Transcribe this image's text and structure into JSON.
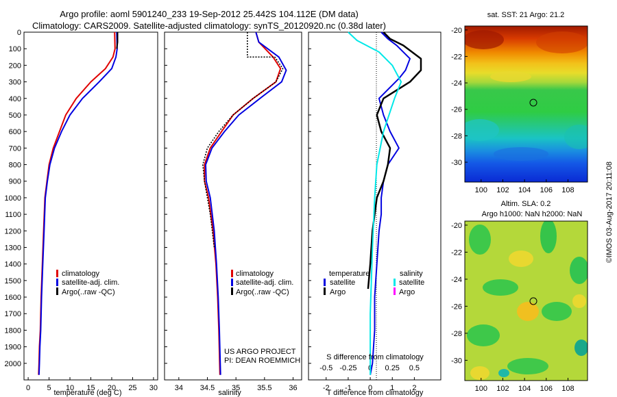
{
  "figure": {
    "title_line1": "Argo profile: aoml 5901240_233 19-Sep-2012 25.442S 104.112E (DM data)",
    "title_line2": "Climatology: CARS2009. Satellite-adjusted climatology: synTS_20120920.nc (0.38d later)",
    "copyright": "©IMOS 03-Aug-2017 20:11:08"
  },
  "colors": {
    "climatology": "#e00000",
    "satellite": "#0000e0",
    "argo": "#000000",
    "sal_satellite": "#00e8e8",
    "sal_argo": "#ff00ff"
  },
  "chart_data": [
    {
      "id": "temperature",
      "type": "line",
      "xlabel": "temperature (deg C)",
      "ylabel": "",
      "xlim": [
        -1,
        31
      ],
      "ylim": [
        2100,
        0
      ],
      "xticks": [
        0,
        5,
        10,
        15,
        20,
        25,
        30
      ],
      "yticks": [
        0,
        100,
        200,
        300,
        400,
        500,
        600,
        700,
        800,
        900,
        1000,
        1100,
        1200,
        1300,
        1400,
        1500,
        1600,
        1700,
        1800,
        1900,
        2000
      ],
      "legend": [
        "climatology",
        "satellite-adj. clim.",
        "Argo(..raw -QC)"
      ],
      "series": [
        {
          "name": "climatology",
          "color_key": "climatology",
          "x": [
            20.7,
            20.8,
            20.3,
            18.5,
            15.0,
            11.5,
            9.0,
            7.5,
            6.0,
            5.0,
            4.5,
            4.0,
            3.7,
            3.4,
            3.1,
            2.9,
            2.7,
            2.6,
            2.5
          ],
          "y": [
            0,
            100,
            150,
            220,
            300,
            400,
            500,
            600,
            700,
            800,
            900,
            1000,
            1200,
            1400,
            1600,
            1800,
            1900,
            2000,
            2070
          ]
        },
        {
          "name": "satellite-adj. clim.",
          "color_key": "satellite",
          "x": [
            21.2,
            21.3,
            21.0,
            20.0,
            17.0,
            13.0,
            10.0,
            8.0,
            6.3,
            5.2,
            4.6,
            4.1,
            3.8,
            3.5,
            3.2,
            3.0,
            2.8,
            2.7,
            2.6
          ],
          "y": [
            0,
            100,
            150,
            220,
            300,
            400,
            500,
            600,
            700,
            800,
            900,
            1000,
            1200,
            1400,
            1600,
            1800,
            1900,
            2000,
            2070
          ]
        },
        {
          "name": "Argo(..raw -QC)",
          "color_key": "argo",
          "x": [
            21.4,
            21.4,
            21.2
          ],
          "y": [
            0,
            60,
            100
          ]
        }
      ]
    },
    {
      "id": "salinity",
      "type": "line",
      "xlabel": "salinity",
      "ylabel": "",
      "xlim": [
        33.75,
        36.15
      ],
      "ylim": [
        2100,
        0
      ],
      "xticks": [
        34,
        34.5,
        35,
        35.5,
        36
      ],
      "xticklabels": [
        "34",
        "34.5",
        "35",
        "35.5",
        "36"
      ],
      "legend": [
        "climatology",
        "satellite-adj. clim.",
        "Argo(..raw -QC)"
      ],
      "annotation_line1": "US ARGO PROJECT",
      "annotation_line2": "PI: DEAN ROEMMICH",
      "series": [
        {
          "name": "climatology",
          "color_key": "climatology",
          "x": [
            35.35,
            35.4,
            35.65,
            35.78,
            35.7,
            35.3,
            34.95,
            34.75,
            34.55,
            34.45,
            34.45,
            34.52,
            34.6,
            34.65,
            34.68,
            34.7,
            34.72
          ],
          "y": [
            0,
            60,
            150,
            220,
            300,
            400,
            500,
            600,
            700,
            800,
            900,
            1000,
            1200,
            1400,
            1600,
            1800,
            2070
          ]
        },
        {
          "name": "satellite-adj. clim.",
          "color_key": "satellite",
          "x": [
            35.35,
            35.4,
            35.75,
            35.88,
            35.8,
            35.42,
            35.05,
            34.8,
            34.58,
            34.47,
            34.48,
            34.55,
            34.62,
            34.66,
            34.69,
            34.71,
            34.73
          ],
          "y": [
            0,
            60,
            150,
            230,
            300,
            400,
            500,
            600,
            700,
            800,
            900,
            1000,
            1200,
            1400,
            1600,
            1800,
            2070
          ]
        },
        {
          "name": "Argo(..raw -QC)",
          "color_key": "argo",
          "x": [
            35.2,
            35.2,
            35.68,
            35.82,
            35.7,
            35.3,
            34.95,
            34.7,
            34.5,
            34.42,
            34.45,
            34.55,
            34.62
          ],
          "y": [
            0,
            150,
            150,
            220,
            300,
            400,
            500,
            600,
            700,
            800,
            900,
            1100,
            1300
          ]
        }
      ]
    },
    {
      "id": "difference",
      "type": "line",
      "xlabel": "T difference from climatology",
      "xlabel_top": "S difference from climatology",
      "xlim": [
        -2.8,
        3.2
      ],
      "ylim": [
        2100,
        0
      ],
      "xticks": [
        -2,
        -1,
        0,
        1,
        2
      ],
      "xticks_top": [
        -0.5,
        -0.25,
        0,
        0.25,
        0.5
      ],
      "xticklabels_top": [
        "-0.5",
        "-0.25",
        "0",
        "0.25",
        "0.5"
      ],
      "legend_temperature_title": "temperature",
      "legend_salinity_title": "salinity",
      "legend_temperature": [
        "satellite",
        "Argo"
      ],
      "legend_salinity": [
        "satellite",
        "Argo"
      ],
      "series": [
        {
          "name": "satellite",
          "group": "temperature",
          "color_key": "satellite",
          "x": [
            0.5,
            0.8,
            1.2,
            1.8,
            1.6,
            1.3,
            1.0,
            0.4,
            0.6,
            0.9,
            1.3,
            0.8,
            0.6,
            0.5,
            0.5,
            0.4,
            0.3,
            0.2,
            0.2,
            0.1,
            0.0
          ],
          "y": [
            0,
            40,
            80,
            160,
            230,
            280,
            320,
            400,
            500,
            600,
            700,
            800,
            900,
            1000,
            1100,
            1200,
            1400,
            1600,
            1800,
            2000,
            2070
          ]
        },
        {
          "name": "Argo",
          "group": "temperature",
          "color_key": "argo",
          "x": [
            0.6,
            0.9,
            1.5,
            2.3,
            2.3,
            1.8,
            0.6,
            0.3,
            0.5,
            0.9,
            0.8,
            0.6,
            0.3,
            0.1,
            0.0,
            -0.1
          ],
          "y": [
            0,
            40,
            80,
            160,
            230,
            300,
            400,
            500,
            600,
            700,
            800,
            900,
            1000,
            1200,
            1400,
            1550
          ]
        },
        {
          "name": "satellite",
          "group": "salinity",
          "color_key": "sal_satellite",
          "x": [
            -1.0,
            -0.6,
            0.4,
            1.0,
            1.4,
            1.1,
            0.6,
            0.3,
            0.2,
            0.1,
            0.0,
            0.0
          ],
          "y": [
            0,
            50,
            120,
            200,
            300,
            400,
            600,
            800,
            1000,
            1300,
            1700,
            2070
          ]
        }
      ]
    }
  ],
  "maps": [
    {
      "id": "sst",
      "title_line1": "sat. SST: 21 Argo: 21.2",
      "title_line2": "",
      "xticks": [
        100,
        102,
        104,
        106,
        108
      ],
      "yticks": [
        -20,
        -22,
        -24,
        -26,
        -28,
        -30
      ],
      "xlim": [
        98.5,
        109.8
      ],
      "ylim": [
        -31.5,
        -19.7
      ],
      "marker": {
        "lon": 104.112,
        "lat": -25.442
      }
    },
    {
      "id": "sla",
      "title_line1": "Altim. SLA: 0.2",
      "title_line2": "Argo h1000: NaN h2000: NaN",
      "xticks": [
        100,
        102,
        104,
        106,
        108
      ],
      "yticks": [
        -20,
        -22,
        -24,
        -26,
        -28,
        -30
      ],
      "xlim": [
        98.5,
        109.8
      ],
      "ylim": [
        -31.5,
        -19.7
      ],
      "marker": {
        "lon": 104.112,
        "lat": -25.442
      }
    }
  ]
}
